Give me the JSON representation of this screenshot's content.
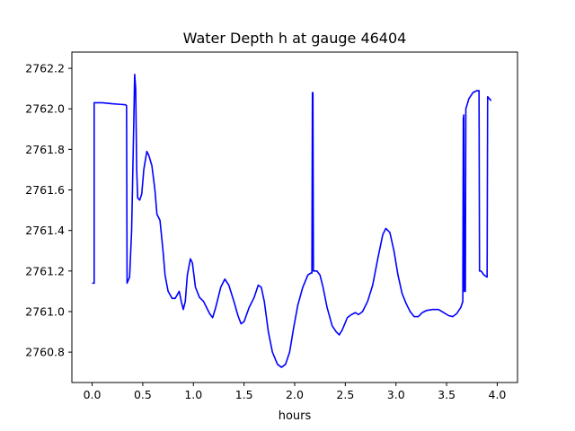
{
  "chart_data": {
    "type": "line",
    "title": "Water Depth h at gauge 46404",
    "xlabel": "hours",
    "ylabel": "",
    "xlim": [
      -0.2,
      4.2
    ],
    "ylim": [
      2760.65,
      2762.28
    ],
    "xticks": [
      0.0,
      0.5,
      1.0,
      1.5,
      2.0,
      2.5,
      3.0,
      3.5,
      4.0
    ],
    "xtick_labels": [
      "0.0",
      "0.5",
      "1.0",
      "1.5",
      "2.0",
      "2.5",
      "3.0",
      "3.5",
      "4.0"
    ],
    "yticks": [
      2760.8,
      2761.0,
      2761.2,
      2761.4,
      2761.6,
      2761.8,
      2762.0,
      2762.2
    ],
    "ytick_labels": [
      "2760.8",
      "2761.0",
      "2761.2",
      "2761.4",
      "2761.6",
      "2761.8",
      "2762.0",
      "2762.2"
    ],
    "grid": false,
    "legend": "none",
    "series": [
      {
        "color": "#0000ff",
        "points": [
          [
            0.0,
            2761.14
          ],
          [
            0.02,
            2761.14
          ],
          [
            0.02,
            2762.03
          ],
          [
            0.1,
            2762.03
          ],
          [
            0.2,
            2762.025
          ],
          [
            0.28,
            2762.022
          ],
          [
            0.33,
            2762.02
          ],
          [
            0.33,
            2762.02
          ],
          [
            0.34,
            2762.015
          ],
          [
            0.345,
            2761.14
          ],
          [
            0.37,
            2761.17
          ],
          [
            0.39,
            2761.4
          ],
          [
            0.41,
            2761.9
          ],
          [
            0.42,
            2762.17
          ],
          [
            0.43,
            2762.1
          ],
          [
            0.44,
            2761.7
          ],
          [
            0.45,
            2761.56
          ],
          [
            0.47,
            2761.55
          ],
          [
            0.49,
            2761.58
          ],
          [
            0.51,
            2761.7
          ],
          [
            0.54,
            2761.79
          ],
          [
            0.56,
            2761.77
          ],
          [
            0.59,
            2761.72
          ],
          [
            0.62,
            2761.6
          ],
          [
            0.64,
            2761.48
          ],
          [
            0.67,
            2761.45
          ],
          [
            0.7,
            2761.3
          ],
          [
            0.72,
            2761.18
          ],
          [
            0.75,
            2761.1
          ],
          [
            0.79,
            2761.065
          ],
          [
            0.82,
            2761.065
          ],
          [
            0.86,
            2761.1
          ],
          [
            0.88,
            2761.05
          ],
          [
            0.9,
            2761.01
          ],
          [
            0.92,
            2761.05
          ],
          [
            0.94,
            2761.18
          ],
          [
            0.97,
            2761.26
          ],
          [
            0.99,
            2761.24
          ],
          [
            1.02,
            2761.12
          ],
          [
            1.06,
            2761.07
          ],
          [
            1.1,
            2761.05
          ],
          [
            1.13,
            2761.02
          ],
          [
            1.16,
            2760.99
          ],
          [
            1.19,
            2760.97
          ],
          [
            1.22,
            2761.02
          ],
          [
            1.27,
            2761.12
          ],
          [
            1.31,
            2761.16
          ],
          [
            1.35,
            2761.13
          ],
          [
            1.4,
            2761.05
          ],
          [
            1.44,
            2760.98
          ],
          [
            1.47,
            2760.94
          ],
          [
            1.5,
            2760.95
          ],
          [
            1.55,
            2761.02
          ],
          [
            1.6,
            2761.07
          ],
          [
            1.64,
            2761.13
          ],
          [
            1.67,
            2761.12
          ],
          [
            1.7,
            2761.05
          ],
          [
            1.74,
            2760.9
          ],
          [
            1.78,
            2760.8
          ],
          [
            1.83,
            2760.74
          ],
          [
            1.87,
            2760.725
          ],
          [
            1.91,
            2760.74
          ],
          [
            1.95,
            2760.8
          ],
          [
            1.99,
            2760.92
          ],
          [
            2.03,
            2761.03
          ],
          [
            2.08,
            2761.12
          ],
          [
            2.13,
            2761.18
          ],
          [
            2.16,
            2761.19
          ],
          [
            2.17,
            2761.19
          ],
          [
            2.175,
            2762.08
          ],
          [
            2.18,
            2762.08
          ],
          [
            2.185,
            2761.2
          ],
          [
            2.22,
            2761.2
          ],
          [
            2.25,
            2761.18
          ],
          [
            2.28,
            2761.12
          ],
          [
            2.32,
            2761.02
          ],
          [
            2.37,
            2760.93
          ],
          [
            2.41,
            2760.9
          ],
          [
            2.44,
            2760.885
          ],
          [
            2.47,
            2760.91
          ],
          [
            2.52,
            2760.97
          ],
          [
            2.56,
            2760.985
          ],
          [
            2.6,
            2760.995
          ],
          [
            2.63,
            2760.985
          ],
          [
            2.67,
            2761.0
          ],
          [
            2.72,
            2761.05
          ],
          [
            2.77,
            2761.13
          ],
          [
            2.82,
            2761.26
          ],
          [
            2.87,
            2761.38
          ],
          [
            2.9,
            2761.41
          ],
          [
            2.94,
            2761.39
          ],
          [
            2.98,
            2761.3
          ],
          [
            3.02,
            2761.18
          ],
          [
            3.06,
            2761.09
          ],
          [
            3.1,
            2761.04
          ],
          [
            3.14,
            2761.0
          ],
          [
            3.18,
            2760.975
          ],
          [
            3.22,
            2760.975
          ],
          [
            3.26,
            2760.995
          ],
          [
            3.3,
            2761.005
          ],
          [
            3.36,
            2761.01
          ],
          [
            3.42,
            2761.01
          ],
          [
            3.47,
            2760.995
          ],
          [
            3.52,
            2760.98
          ],
          [
            3.56,
            2760.975
          ],
          [
            3.6,
            2760.99
          ],
          [
            3.64,
            2761.02
          ],
          [
            3.66,
            2761.05
          ],
          [
            3.665,
            2761.95
          ],
          [
            3.67,
            2761.97
          ],
          [
            3.675,
            2761.1
          ],
          [
            3.685,
            2761.1
          ],
          [
            3.69,
            2762.0
          ],
          [
            3.72,
            2762.05
          ],
          [
            3.76,
            2762.08
          ],
          [
            3.8,
            2762.09
          ],
          [
            3.82,
            2762.09
          ],
          [
            3.825,
            2761.2
          ],
          [
            3.84,
            2761.2
          ],
          [
            3.87,
            2761.18
          ],
          [
            3.9,
            2761.17
          ],
          [
            3.905,
            2762.06
          ],
          [
            3.94,
            2762.04
          ]
        ]
      }
    ]
  }
}
